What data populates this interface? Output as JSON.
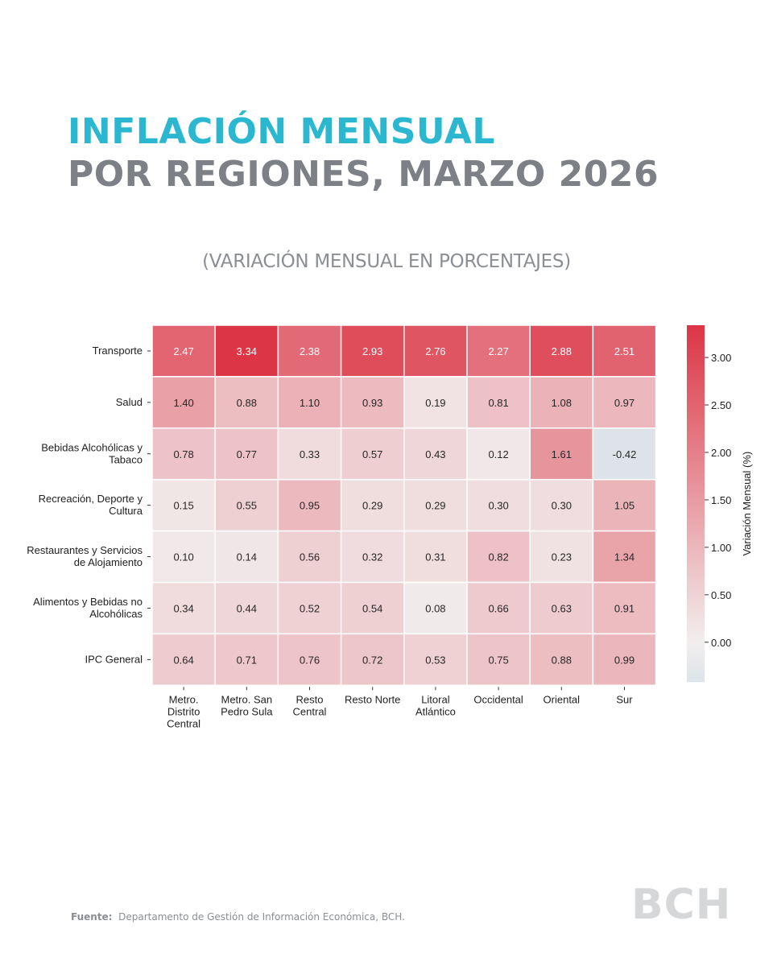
{
  "header": {
    "title_line1": "INFLACIÓN MENSUAL",
    "title_line2": "POR REGIONES, MARZO 2026",
    "subtitle": "(VARIACIÓN MENSUAL EN PORCENTAJES)"
  },
  "chart_data": {
    "type": "heatmap",
    "rows": [
      [
        "Transporte"
      ],
      [
        "Salud"
      ],
      [
        "Bebidas Alcohólicas y",
        "Tabaco"
      ],
      [
        "Recreación, Deporte y",
        "Cultura"
      ],
      [
        "Restaurantes y Servicios",
        "de Alojamiento"
      ],
      [
        "Alimentos y Bebidas no",
        "Alcohólicas"
      ],
      [
        "IPC General"
      ]
    ],
    "columns": [
      [
        "Metro.",
        "Distrito",
        "Central"
      ],
      [
        "Metro. San",
        "Pedro Sula"
      ],
      [
        "Resto",
        "Central"
      ],
      [
        "Resto  Norte"
      ],
      [
        "Litoral",
        "Atlántico"
      ],
      [
        "Occidental"
      ],
      [
        "Oriental"
      ],
      [
        "Sur"
      ]
    ],
    "values": [
      [
        2.47,
        3.34,
        2.38,
        2.93,
        2.76,
        2.27,
        2.88,
        2.51
      ],
      [
        1.4,
        0.88,
        1.1,
        0.93,
        0.19,
        0.81,
        1.08,
        0.97
      ],
      [
        0.78,
        0.77,
        0.33,
        0.57,
        0.43,
        0.12,
        1.61,
        -0.42
      ],
      [
        0.15,
        0.55,
        0.95,
        0.29,
        0.29,
        0.3,
        0.3,
        1.05
      ],
      [
        0.1,
        0.14,
        0.56,
        0.32,
        0.31,
        0.82,
        0.23,
        1.34
      ],
      [
        0.34,
        0.44,
        0.52,
        0.54,
        0.08,
        0.66,
        0.63,
        0.91
      ],
      [
        0.64,
        0.71,
        0.76,
        0.72,
        0.53,
        0.75,
        0.88,
        0.99
      ]
    ],
    "colorbar": {
      "label": "Variación Mensual (%)",
      "ticks": [
        0.0,
        0.5,
        1.0,
        1.5,
        2.0,
        2.5,
        3.0
      ],
      "range": [
        -0.42,
        3.34
      ],
      "colors": {
        "negative": "#dde3e9",
        "zero": "#f2eeee",
        "positive": "#dc3545"
      }
    }
  },
  "footer": {
    "source_label": "Fuente:",
    "source_text": "Departamento de Gestión de Información Económica, BCH."
  },
  "logo": {
    "text": "BCH"
  }
}
